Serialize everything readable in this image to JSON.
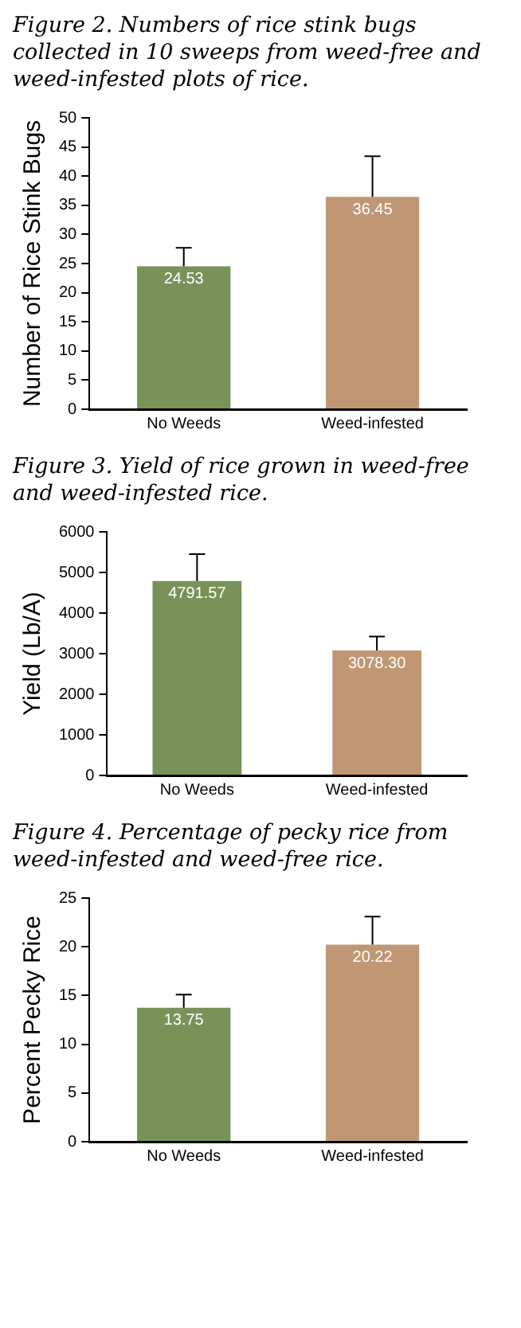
{
  "chart_data": [
    {
      "type": "bar",
      "title": "Figure 2. Numbers of rice stink bugs collected in 10 sweeps from weed-free and weed-infested plots of rice.",
      "ylabel": "Number of Rice Stink Bugs",
      "categories": [
        "No Weeds",
        "Weed-infested"
      ],
      "values": [
        24.53,
        36.45
      ],
      "colors": [
        "#78925a",
        "#c09775"
      ],
      "errors": [
        [
          24.53,
          27.7
        ],
        [
          36.45,
          43.4
        ]
      ],
      "ylim": [
        0,
        50
      ],
      "yticks": [
        0,
        5,
        10,
        15,
        20,
        25,
        30,
        35,
        40,
        45,
        50
      ],
      "data_labels": true,
      "grid": false,
      "legend": false
    },
    {
      "type": "bar",
      "title": "Figure 3. Yield of rice grown in weed-free and weed-infested rice.",
      "ylabel": "Yield (Lb/A)",
      "categories": [
        "No Weeds",
        "Weed-infested"
      ],
      "values": [
        4791.57,
        3078.3
      ],
      "value_labels": [
        "4791.57",
        "3078.30"
      ],
      "colors": [
        "#78925a",
        "#c09775"
      ],
      "errors": [
        [
          4791.57,
          5450
        ],
        [
          3078.3,
          3420
        ]
      ],
      "ylim": [
        0,
        6000
      ],
      "yticks": [
        0,
        1000,
        2000,
        3000,
        4000,
        5000,
        6000
      ],
      "grid": false,
      "legend": false
    },
    {
      "type": "bar",
      "title": "Figure 4. Percentage of pecky rice from weed-infested and weed-free rice.",
      "ylabel": "Percent Pecky Rice",
      "categories": [
        "No Weeds",
        "Weed-infested"
      ],
      "values": [
        13.75,
        20.22
      ],
      "colors": [
        "#78925a",
        "#c09775"
      ],
      "errors": [
        [
          13.75,
          15.1
        ],
        [
          20.22,
          23.1
        ]
      ],
      "ylim": [
        0,
        25
      ],
      "yticks": [
        0,
        5,
        10,
        15,
        20,
        25
      ],
      "data_labels": true,
      "grid": false,
      "legend": false
    }
  ]
}
